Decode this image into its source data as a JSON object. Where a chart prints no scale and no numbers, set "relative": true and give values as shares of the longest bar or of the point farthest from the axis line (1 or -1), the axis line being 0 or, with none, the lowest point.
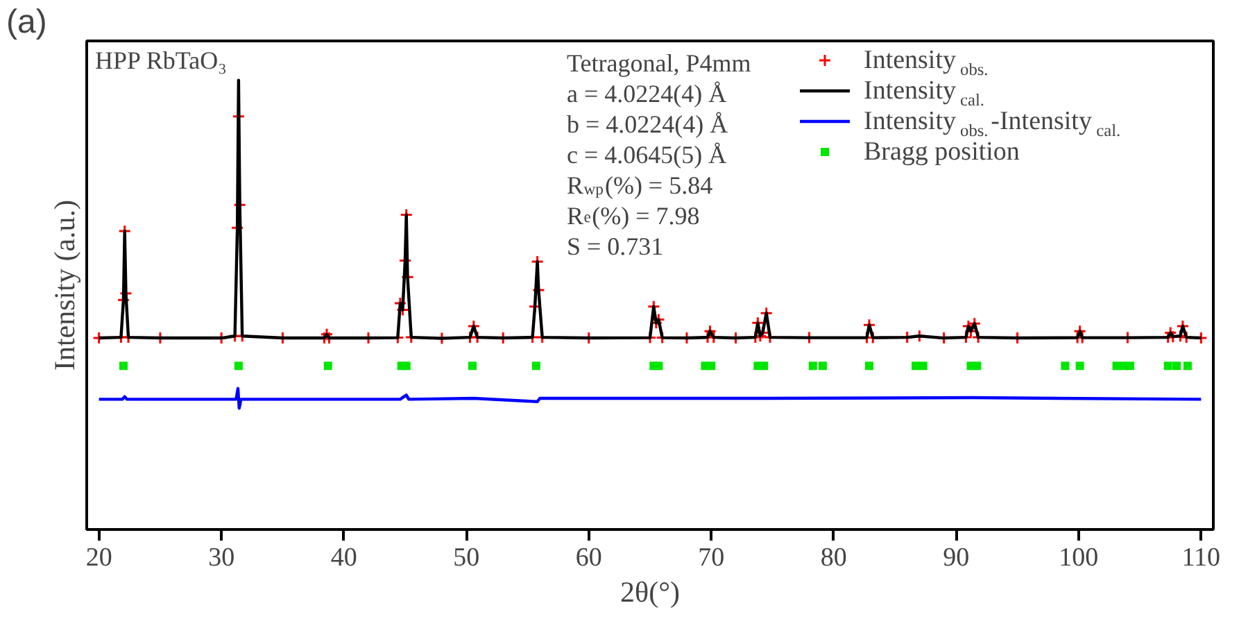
{
  "chart_data": {
    "type": "line",
    "relative": true,
    "xlabel": "2θ(°)",
    "ylabel": "Intensity (a.u.)",
    "xlim": [
      19,
      111
    ],
    "xticks": [
      20,
      30,
      40,
      50,
      60,
      70,
      80,
      90,
      100,
      110
    ],
    "tick_labels": "x",
    "grid": false,
    "legend": "top right",
    "annotations": [
      "(a)",
      "HPP  RbTaO₃",
      "Tetragonal, P4mm\na = 4.0224(4) Å\nb = 4.0224(4) Å\nc = 4.0645(5) Å\nR$_{wp}$(%) = 5.84\nR$_{e}$(%) = 7.98\nS = 0.731"
    ],
    "series": [
      {
        "name": "Intensity$_{obs.}$",
        "type": "scatter",
        "marker": "cross",
        "color": "#ff0000",
        "x": [
          20,
          21.8,
          22.0,
          22.1,
          22.2,
          22.4,
          25,
          30,
          31.1,
          31.3,
          31.4,
          31.5,
          31.7,
          35,
          38.4,
          38.6,
          38.8,
          42,
          44.4,
          44.6,
          44.8,
          45.0,
          45.1,
          45.2,
          45.5,
          48,
          50.3,
          50.6,
          50.9,
          53,
          55.4,
          55.6,
          55.8,
          55.9,
          56.2,
          60,
          65.0,
          65.3,
          65.5,
          65.7,
          66.0,
          68,
          69.7,
          69.9,
          70.2,
          72,
          73.6,
          73.8,
          74.0,
          74.2,
          74.5,
          74.8,
          78,
          82.7,
          82.9,
          83.2,
          86,
          87.0,
          89,
          90.8,
          91.0,
          91.2,
          91.5,
          91.8,
          95,
          99.9,
          100.1,
          100.3,
          104,
          107.3,
          107.5,
          107.7,
          108.3,
          108.5,
          108.8,
          110
        ],
        "values": [
          0.214,
          0.216,
          0.33,
          0.54,
          0.35,
          0.216,
          0.214,
          0.214,
          0.22,
          0.55,
          0.89,
          0.62,
          0.22,
          0.214,
          0.214,
          0.225,
          0.214,
          0.214,
          0.215,
          0.32,
          0.3,
          0.45,
          0.59,
          0.4,
          0.216,
          0.213,
          0.216,
          0.25,
          0.216,
          0.214,
          0.216,
          0.31,
          0.447,
          0.36,
          0.216,
          0.214,
          0.215,
          0.31,
          0.26,
          0.27,
          0.215,
          0.214,
          0.216,
          0.235,
          0.216,
          0.214,
          0.216,
          0.26,
          0.22,
          0.23,
          0.29,
          0.216,
          0.215,
          0.215,
          0.254,
          0.215,
          0.216,
          0.22,
          0.214,
          0.216,
          0.25,
          0.235,
          0.258,
          0.216,
          0.214,
          0.215,
          0.235,
          0.215,
          0.215,
          0.216,
          0.23,
          0.218,
          0.22,
          0.25,
          0.216,
          0.214
        ]
      },
      {
        "name": "Intensity$_{cal.}$",
        "line_style": "solid",
        "color": "#000000",
        "x": [
          20,
          21.8,
          22.0,
          22.1,
          22.2,
          22.4,
          25,
          30,
          31.1,
          31.3,
          31.4,
          31.5,
          31.7,
          35,
          38.4,
          38.6,
          38.8,
          42,
          44.4,
          44.6,
          44.8,
          45.0,
          45.1,
          45.2,
          45.5,
          48,
          50.3,
          50.6,
          50.9,
          53,
          55.4,
          55.6,
          55.8,
          55.9,
          56.2,
          60,
          65.0,
          65.3,
          65.5,
          65.7,
          66.0,
          68,
          69.7,
          69.9,
          70.2,
          72,
          73.6,
          73.8,
          74.0,
          74.2,
          74.5,
          74.8,
          78,
          82.7,
          82.9,
          83.2,
          86,
          87.0,
          89,
          90.8,
          91.0,
          91.2,
          91.5,
          91.8,
          95,
          99.9,
          100.1,
          100.3,
          104,
          107.3,
          107.5,
          107.7,
          108.3,
          108.5,
          108.8,
          110
        ],
        "values": [
          0.214,
          0.216,
          0.33,
          0.54,
          0.35,
          0.216,
          0.214,
          0.214,
          0.22,
          0.55,
          1.0,
          0.62,
          0.22,
          0.214,
          0.214,
          0.225,
          0.214,
          0.214,
          0.215,
          0.32,
          0.3,
          0.45,
          0.59,
          0.4,
          0.216,
          0.213,
          0.216,
          0.25,
          0.216,
          0.214,
          0.216,
          0.31,
          0.447,
          0.36,
          0.216,
          0.214,
          0.215,
          0.31,
          0.26,
          0.27,
          0.215,
          0.214,
          0.216,
          0.235,
          0.216,
          0.214,
          0.216,
          0.26,
          0.22,
          0.23,
          0.29,
          0.216,
          0.215,
          0.215,
          0.254,
          0.215,
          0.216,
          0.22,
          0.214,
          0.216,
          0.25,
          0.235,
          0.258,
          0.216,
          0.214,
          0.215,
          0.235,
          0.215,
          0.215,
          0.216,
          0.23,
          0.218,
          0.22,
          0.25,
          0.216,
          0.214
        ]
      },
      {
        "name": "Intensity$_{obs.}$-Intensity$_{cal.}$",
        "line_style": "solid",
        "color": "#0000ff",
        "x": [
          20,
          21.9,
          22.1,
          22.3,
          25,
          31.2,
          31.35,
          31.45,
          31.6,
          35,
          44.6,
          45.1,
          45.3,
          50.6,
          55.8,
          56,
          65.3,
          74.5,
          91.3,
          110
        ],
        "values": [
          0.027,
          0.027,
          0.035,
          0.027,
          0.027,
          0.027,
          0.06,
          0.0,
          0.027,
          0.027,
          0.027,
          0.04,
          0.027,
          0.03,
          0.02,
          0.03,
          0.03,
          0.03,
          0.032,
          0.027
        ]
      },
      {
        "name": "Bragg position",
        "type": "scatter",
        "marker": "square",
        "color": "#00e600",
        "x": [
          22.0,
          31.4,
          38.7,
          44.7,
          45.1,
          50.5,
          55.7,
          65.3,
          65.7,
          69.5,
          70.0,
          73.8,
          74.3,
          78.3,
          79.1,
          82.9,
          86.7,
          87.3,
          91.2,
          91.7,
          98.9,
          100.1,
          103.1,
          103.7,
          104.2,
          107.3,
          108.0,
          108.9
        ],
        "values": [
          0.129,
          0.129,
          0.129,
          0.129,
          0.129,
          0.129,
          0.129,
          0.129,
          0.129,
          0.129,
          0.129,
          0.129,
          0.129,
          0.129,
          0.129,
          0.129,
          0.129,
          0.129,
          0.129,
          0.129,
          0.129,
          0.129,
          0.129,
          0.129,
          0.129,
          0.129,
          0.129,
          0.129
        ]
      }
    ]
  }
}
